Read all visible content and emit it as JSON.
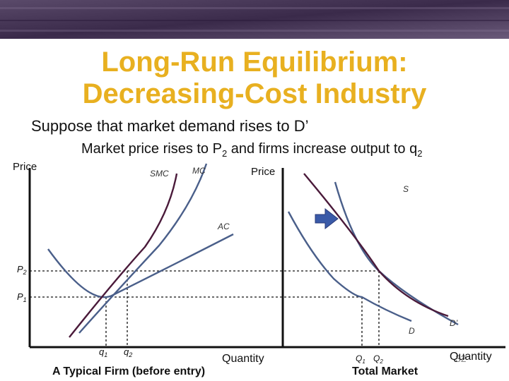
{
  "title": {
    "line1": "Long-Run Equilibrium:",
    "line2": "Decreasing-Cost Industry"
  },
  "body": {
    "line1": "Suppose that market demand rises to D’",
    "line2_a": "Market price rises to P",
    "line2_sub_a": "2",
    "line2_b": " and firms increase output to q",
    "line2_sub_b": "2"
  },
  "firm_panel": {
    "y_axis_label": "Price",
    "x_axis_label": "Quantity",
    "caption": "A Typical Firm (before entry)",
    "curve_labels": {
      "smc": "SMC",
      "mc": "MC",
      "ac": "AC"
    },
    "price_labels": {
      "p2": "P",
      "p2_sub": "2",
      "p1": "P",
      "p1_sub": "1"
    },
    "quantity_labels": {
      "q1": "q",
      "q1_sub": "1",
      "q2": "q",
      "q2_sub": "2"
    }
  },
  "market_panel": {
    "y_axis_label": "Price",
    "x_axis_label": "Quantity",
    "caption": "Total Market",
    "curve_labels": {
      "s": "S",
      "d": "D",
      "d_prime": "D’"
    },
    "quantity_labels": {
      "Q1": "Q",
      "Q1_sub": "1",
      "Q2": "Q",
      "Q2_sub": "2"
    }
  },
  "slide_number": "32",
  "colors": {
    "title": "#e8b020",
    "curve_blue": "#4a5f8a",
    "curve_purple": "#4a1a3a",
    "arrow": "#3a5aa8",
    "banner": "#4a3a5a"
  }
}
